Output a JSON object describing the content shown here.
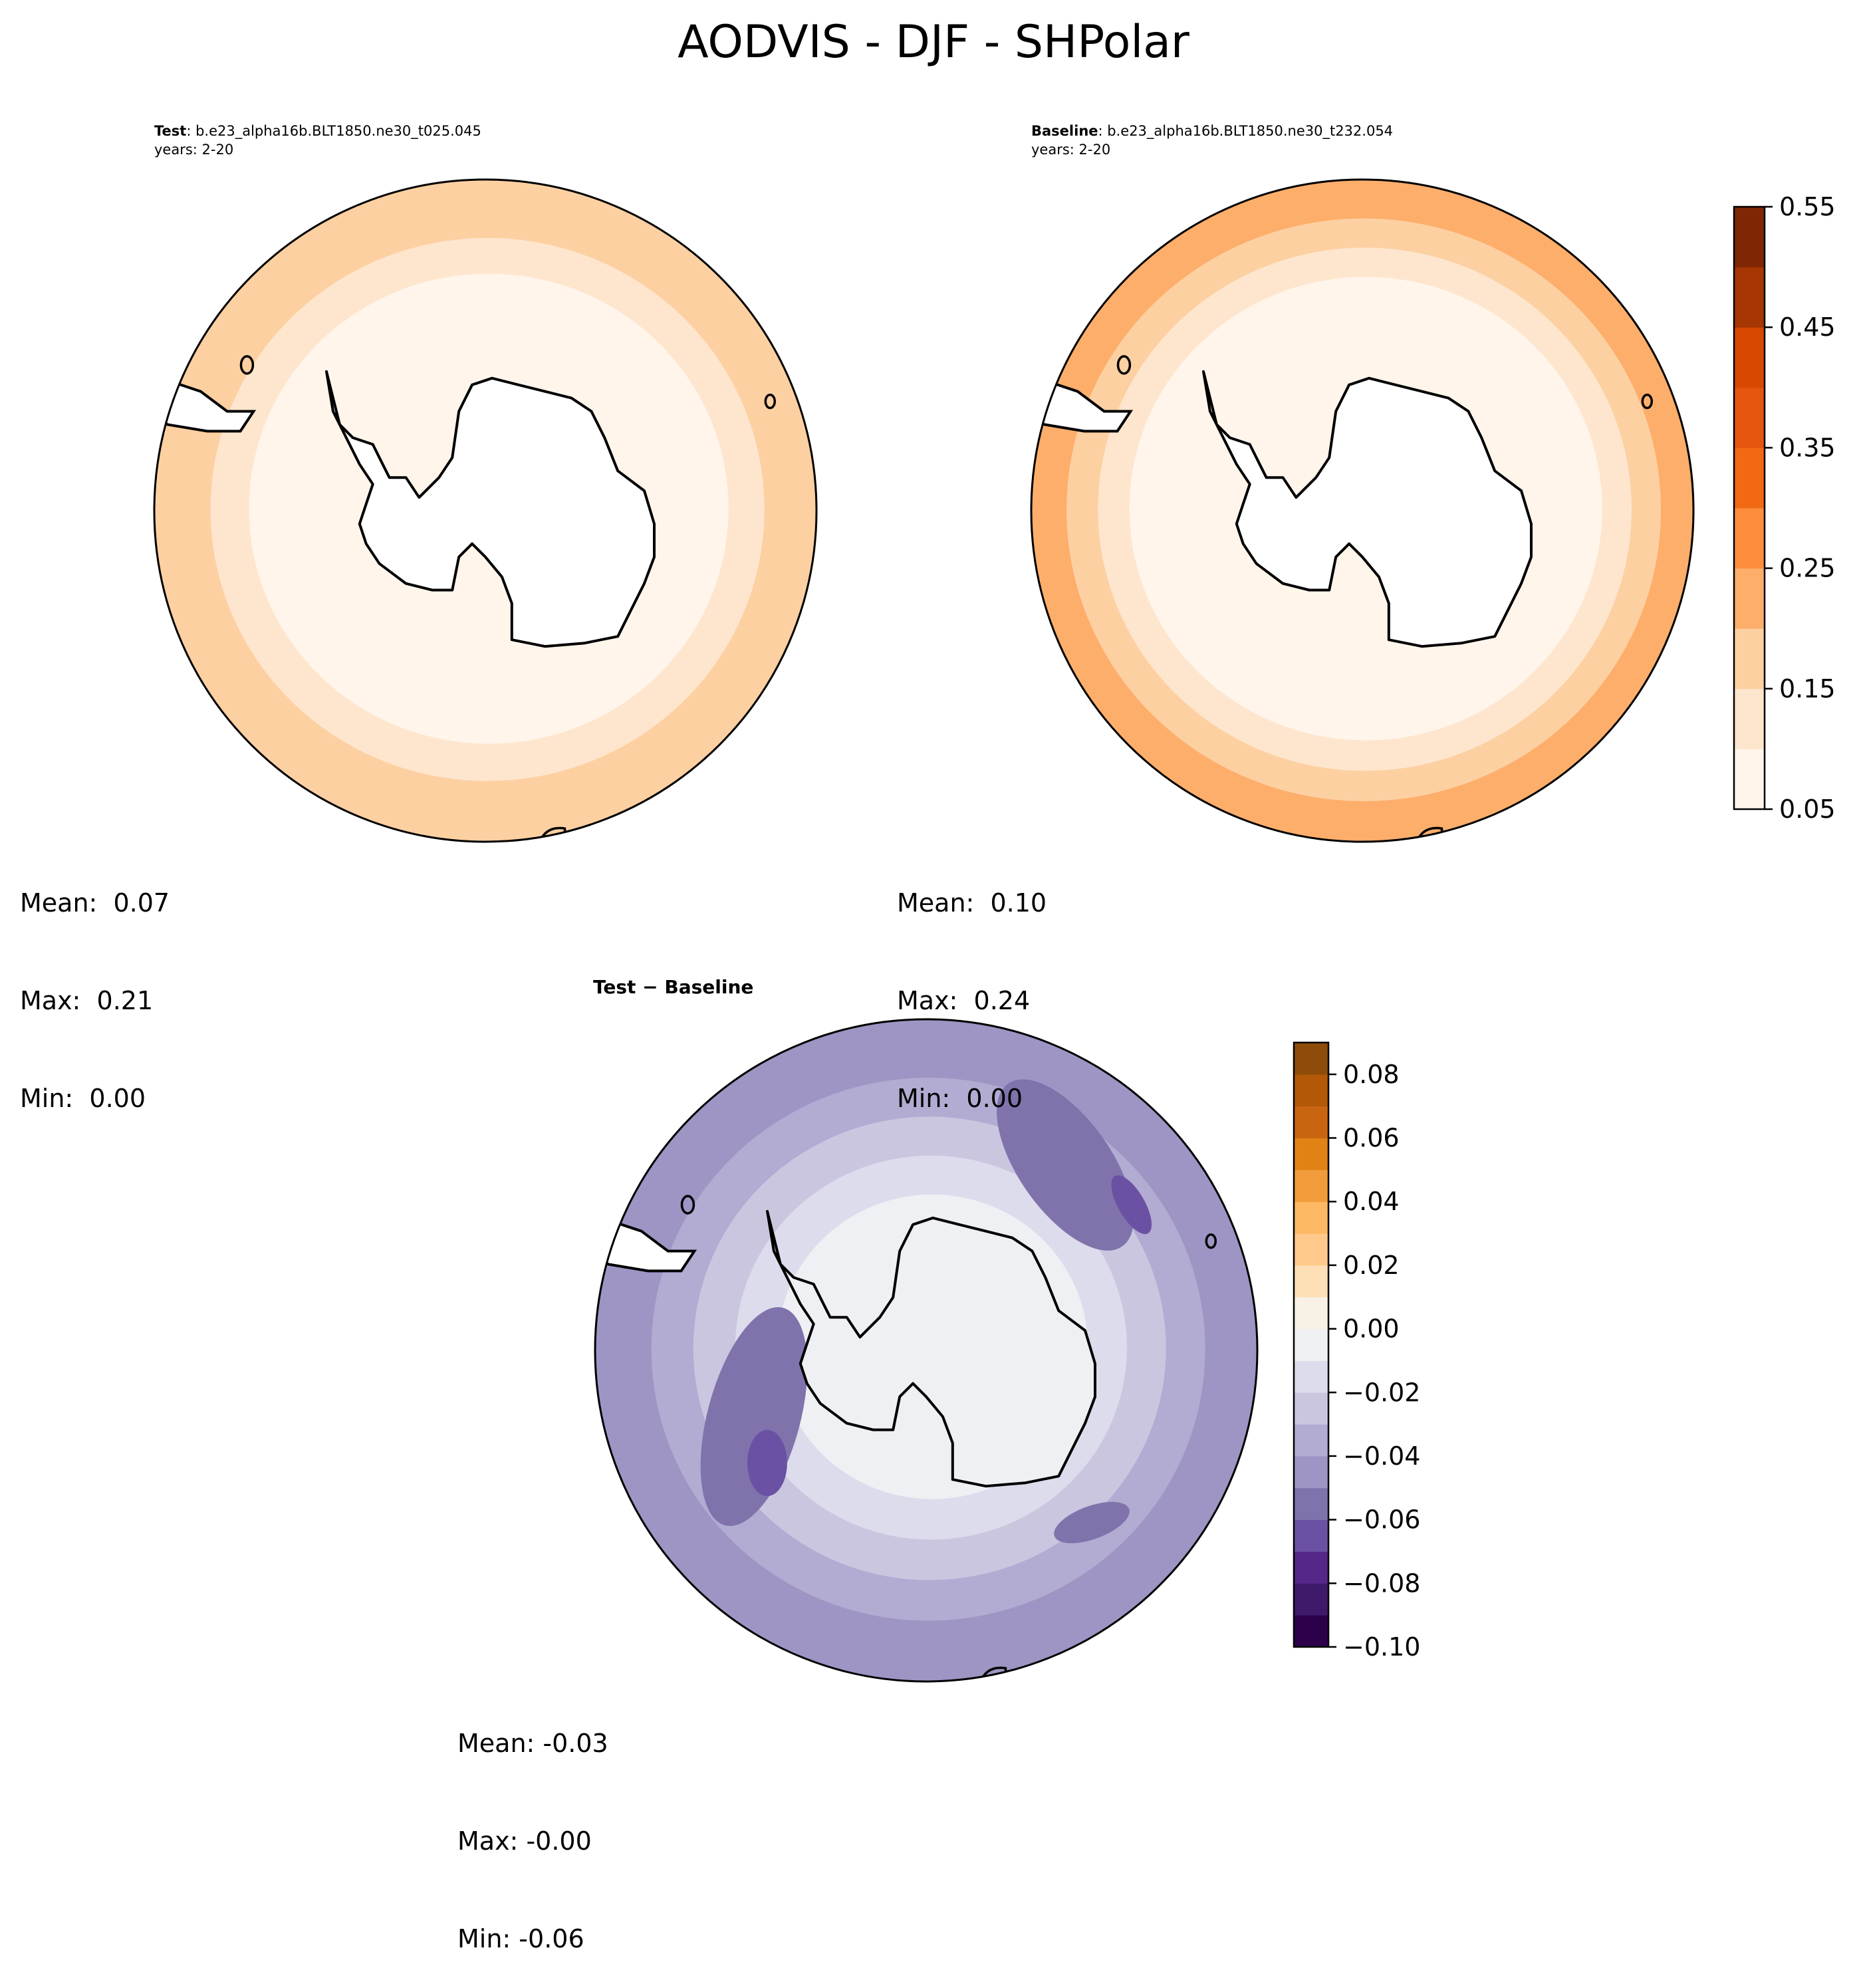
{
  "figure": {
    "suptitle": "AODVIS - DJF - SHPolar"
  },
  "panels": {
    "test": {
      "label": "Test",
      "case": ": b.e23_alpha16b.BLT1850.ne30_t025.045",
      "years": "years: 2-20",
      "mean": "Mean:  0.07",
      "max": "Max:  0.21",
      "min": "Min:  0.00"
    },
    "baseline": {
      "label": "Baseline",
      "case": ": b.e23_alpha16b.BLT1850.ne30_t232.054",
      "years": "years: 2-20",
      "mean": "Mean:  0.10",
      "max": "Max:  0.24",
      "min": "Min:  0.00"
    },
    "diff": {
      "title_a": "Test",
      "title_sep": " − ",
      "title_b": "Baseline",
      "mean": "Mean: -0.03",
      "max": "Max: -0.00",
      "min": "Min: -0.06"
    }
  },
  "chart_data": [
    {
      "type": "heatmap",
      "name": "test",
      "projection": "south-polar-stereographic",
      "colormap": "Oranges",
      "levels": [
        0.05,
        0.1,
        0.15,
        0.2,
        0.25,
        0.3,
        0.35,
        0.4,
        0.45,
        0.5,
        0.55
      ],
      "ring_values": [
        0.0,
        0.075,
        0.125,
        0.175,
        0.175
      ],
      "stats": {
        "mean": 0.07,
        "max": 0.21,
        "min": 0.0
      }
    },
    {
      "type": "heatmap",
      "name": "baseline",
      "projection": "south-polar-stereographic",
      "colormap": "Oranges",
      "levels": [
        0.05,
        0.1,
        0.15,
        0.2,
        0.25,
        0.3,
        0.35,
        0.4,
        0.45,
        0.5,
        0.55
      ],
      "ring_values": [
        0.0,
        0.075,
        0.125,
        0.175,
        0.225,
        0.225
      ],
      "stats": {
        "mean": 0.1,
        "max": 0.24,
        "min": 0.0
      },
      "colorbar": {
        "min": 0.05,
        "max": 0.55,
        "ticks": [
          0.05,
          0.15,
          0.25,
          0.35,
          0.45,
          0.55
        ],
        "tick_labels": [
          "0.05",
          "0.15",
          "0.25",
          "0.35",
          "0.45",
          "0.55"
        ],
        "colors": [
          "#fff5eb",
          "#fee6ce",
          "#fdd0a2",
          "#fdae6b",
          "#fd8d3c",
          "#f16913",
          "#e6550d",
          "#d94801",
          "#a63603",
          "#7f2704"
        ]
      }
    },
    {
      "type": "heatmap",
      "name": "difference",
      "projection": "south-polar-stereographic",
      "colormap": "PuOr_r",
      "levels": [
        -0.1,
        -0.09,
        -0.08,
        -0.07,
        -0.06,
        -0.05,
        -0.04,
        -0.03,
        -0.02,
        -0.01,
        0.0,
        0.01,
        0.02,
        0.03,
        0.04,
        0.05,
        0.06,
        0.07,
        0.08,
        0.09
      ],
      "ring_values": [
        -0.005,
        -0.015,
        -0.025,
        -0.035,
        -0.045,
        -0.045
      ],
      "stats": {
        "mean": -0.03,
        "max": -0.0,
        "min": -0.06
      },
      "colorbar": {
        "min": -0.1,
        "max": 0.09,
        "ticks": [
          -0.1,
          -0.08,
          -0.06,
          -0.04,
          -0.02,
          0.0,
          0.02,
          0.04,
          0.06,
          0.08
        ],
        "tick_labels": [
          "−0.10",
          "−0.08",
          "−0.06",
          "−0.04",
          "−0.02",
          "0.00",
          "0.02",
          "0.04",
          "0.06",
          "0.08"
        ],
        "colors": [
          "#2d004b",
          "#3f1a6b",
          "#542788",
          "#6a51a3",
          "#8073ac",
          "#9e95c4",
          "#b2abd2",
          "#cbc6e0",
          "#dcdcec",
          "#eff0f4",
          "#f7f1e6",
          "#fde0b6",
          "#fec98a",
          "#fdb863",
          "#f29b3a",
          "#e08214",
          "#c96511",
          "#b35806",
          "#8e4c0a"
        ]
      }
    }
  ]
}
